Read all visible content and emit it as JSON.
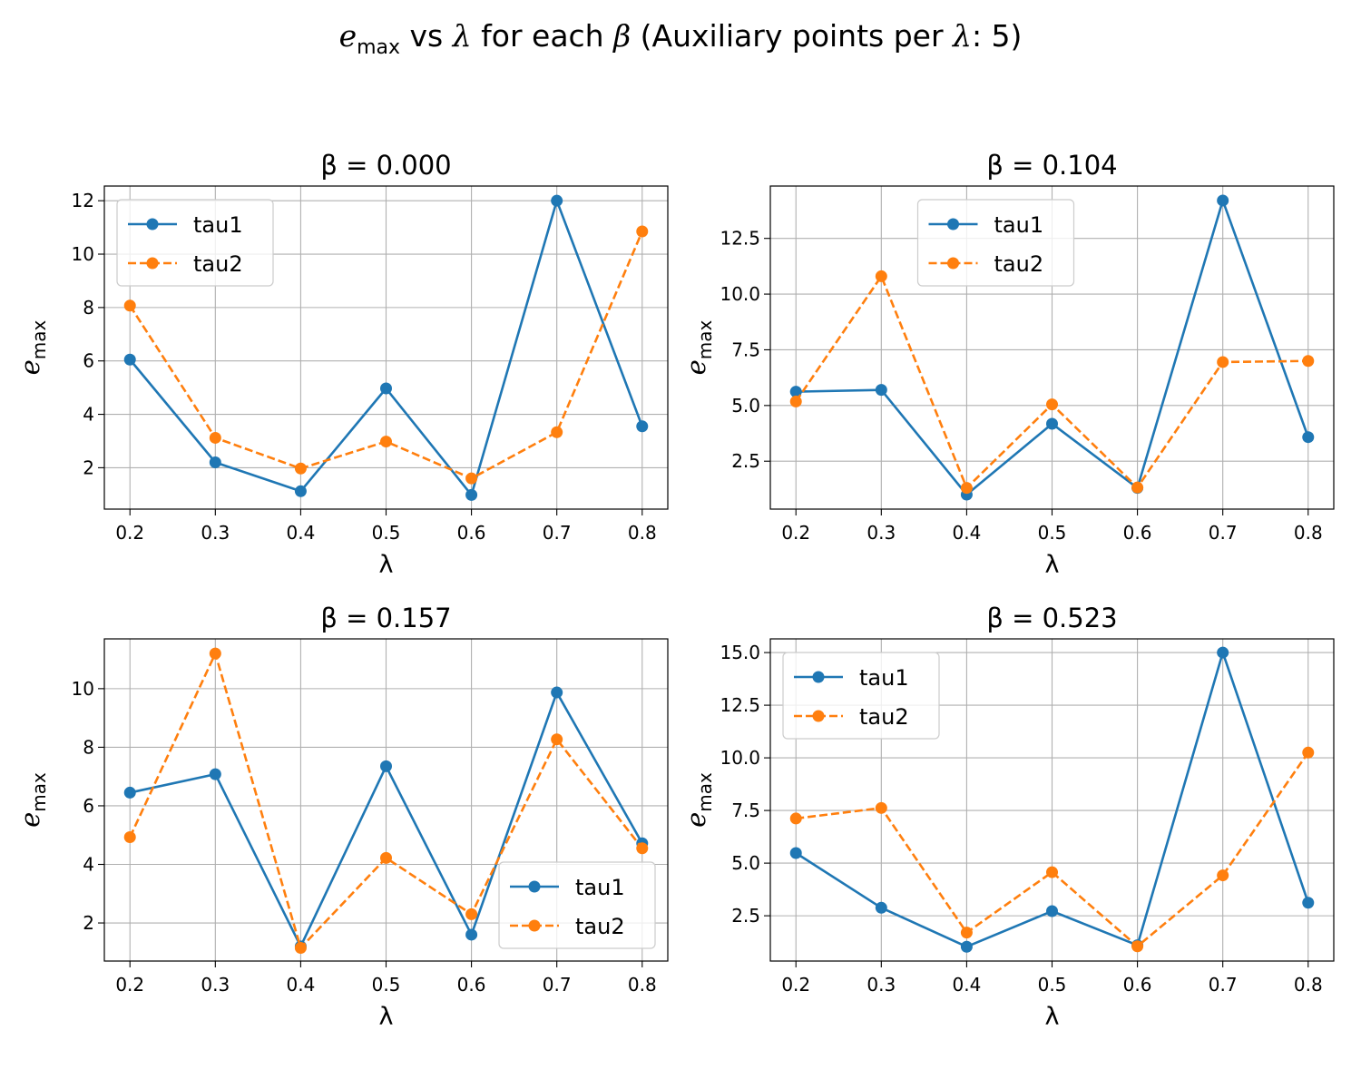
{
  "figure": {
    "suptitle_prefix_symbol": "e",
    "suptitle_prefix_sub": "max",
    "suptitle_mid1": " vs ",
    "suptitle_lambda": "λ",
    "suptitle_mid2": " for each ",
    "suptitle_beta": "β",
    "suptitle_mid3": " (Auxiliary points per ",
    "suptitle_lambda2": "λ",
    "suptitle_end": ": 5)"
  },
  "colors": {
    "tau1": "#1f77b4",
    "tau2": "#ff7f0e"
  },
  "chart_data": [
    {
      "type": "line",
      "title": "β = 0.000",
      "xlabel": "λ",
      "ylabel_symbol": "e",
      "ylabel_sub": "max",
      "x": [
        0.2,
        0.3,
        0.4,
        0.5,
        0.6,
        0.7,
        0.8
      ],
      "xticks": [
        "0.2",
        "0.3",
        "0.4",
        "0.5",
        "0.6",
        "0.7",
        "0.8"
      ],
      "xlim": [
        0.17,
        0.83
      ],
      "ylim": [
        0.45,
        12.55
      ],
      "yticks": [
        2,
        4,
        6,
        8,
        10,
        12
      ],
      "ytick_labels": [
        "2",
        "4",
        "6",
        "8",
        "10",
        "12"
      ],
      "legend": "upper-left",
      "grid": true,
      "series": [
        {
          "name": "tau1",
          "style": "solid",
          "values": [
            6.05,
            2.2,
            1.12,
            4.97,
            0.98,
            12.0,
            3.55
          ]
        },
        {
          "name": "tau2",
          "style": "dashed",
          "values": [
            8.07,
            3.12,
            1.97,
            2.98,
            1.6,
            3.33,
            10.85
          ]
        }
      ]
    },
    {
      "type": "line",
      "title": "β = 0.104",
      "xlabel": "λ",
      "ylabel_symbol": "e",
      "ylabel_sub": "max",
      "x": [
        0.2,
        0.3,
        0.4,
        0.5,
        0.6,
        0.7,
        0.8
      ],
      "xticks": [
        "0.2",
        "0.3",
        "0.4",
        "0.5",
        "0.6",
        "0.7",
        "0.8"
      ],
      "xlim": [
        0.17,
        0.83
      ],
      "ylim": [
        0.35,
        14.85
      ],
      "yticks": [
        2.5,
        5.0,
        7.5,
        10.0,
        12.5
      ],
      "ytick_labels": [
        "2.5",
        "5.0",
        "7.5",
        "10.0",
        "12.5"
      ],
      "legend": "upper-center",
      "grid": true,
      "series": [
        {
          "name": "tau1",
          "style": "solid",
          "values": [
            5.62,
            5.7,
            1.0,
            4.18,
            1.3,
            14.2,
            3.58
          ]
        },
        {
          "name": "tau2",
          "style": "dashed",
          "values": [
            5.18,
            10.8,
            1.3,
            5.05,
            1.32,
            6.95,
            7.0
          ]
        }
      ]
    },
    {
      "type": "line",
      "title": "β = 0.157",
      "xlabel": "λ",
      "ylabel_symbol": "e",
      "ylabel_sub": "max",
      "x": [
        0.2,
        0.3,
        0.4,
        0.5,
        0.6,
        0.7,
        0.8
      ],
      "xticks": [
        "0.2",
        "0.3",
        "0.4",
        "0.5",
        "0.6",
        "0.7",
        "0.8"
      ],
      "xlim": [
        0.17,
        0.83
      ],
      "ylim": [
        0.7,
        11.7
      ],
      "yticks": [
        2,
        4,
        6,
        8,
        10
      ],
      "ytick_labels": [
        "2",
        "4",
        "6",
        "8",
        "10"
      ],
      "legend": "lower-right",
      "grid": true,
      "series": [
        {
          "name": "tau1",
          "style": "solid",
          "values": [
            6.45,
            7.08,
            1.2,
            7.35,
            1.6,
            9.87,
            4.72
          ]
        },
        {
          "name": "tau2",
          "style": "dashed",
          "values": [
            4.93,
            11.2,
            1.15,
            4.22,
            2.3,
            8.27,
            4.55
          ]
        }
      ]
    },
    {
      "type": "line",
      "title": "β = 0.523",
      "xlabel": "λ",
      "ylabel_symbol": "e",
      "ylabel_sub": "max",
      "x": [
        0.2,
        0.3,
        0.4,
        0.5,
        0.6,
        0.7,
        0.8
      ],
      "xticks": [
        "0.2",
        "0.3",
        "0.4",
        "0.5",
        "0.6",
        "0.7",
        "0.8"
      ],
      "xlim": [
        0.17,
        0.83
      ],
      "ylim": [
        0.35,
        15.65
      ],
      "yticks": [
        2.5,
        5.0,
        7.5,
        10.0,
        12.5,
        15.0
      ],
      "ytick_labels": [
        "2.5",
        "5.0",
        "7.5",
        "10.0",
        "12.5",
        "15.0"
      ],
      "legend": "upper-left",
      "grid": true,
      "series": [
        {
          "name": "tau1",
          "style": "solid",
          "values": [
            5.48,
            2.88,
            1.03,
            2.72,
            1.1,
            15.0,
            3.12
          ]
        },
        {
          "name": "tau2",
          "style": "dashed",
          "values": [
            7.12,
            7.62,
            1.7,
            4.57,
            1.05,
            4.42,
            10.25
          ]
        }
      ]
    }
  ]
}
